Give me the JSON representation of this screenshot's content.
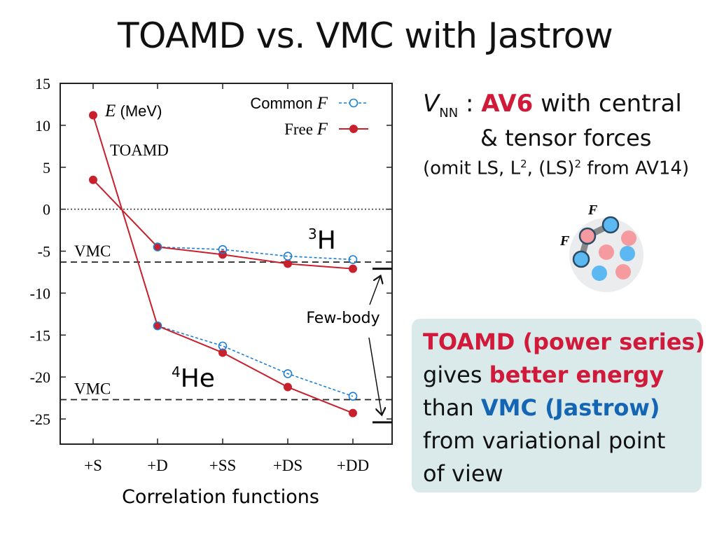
{
  "slide": {
    "title": "TOAMD vs. VMC with Jastrow"
  },
  "right": {
    "vnn_symbol": "V",
    "vnn_sub": "NN",
    "colon": " : ",
    "av6": "AV6",
    "with_central": " with central",
    "tensor": "& tensor forces",
    "omit_prefix": "(omit LS, L",
    "omit_sup1": "2",
    "omit_mid": ", (LS)",
    "omit_sup2": "2",
    "omit_suffix": " from AV14)"
  },
  "molecule": {
    "label_top": "F",
    "label_left": "F",
    "colors": {
      "blue": "#5bb8f0",
      "pink": "#f59a9e",
      "background": "#ebecee",
      "outline": "#2b4a66"
    }
  },
  "callout": {
    "line1": "TOAMD (power series)",
    "line2_prefix": "gives ",
    "line2_highlight": "better energy",
    "line3_prefix": "than ",
    "line3_highlight": "VMC (Jastrow)",
    "line4": "from variational point",
    "line5": "of view",
    "colors": {
      "red": "#d11a3a",
      "blue": "#1565b5",
      "box": "#daeaeb"
    }
  },
  "chart_data": {
    "type": "line",
    "categories": [
      "+S",
      "+D",
      "+SS",
      "+DS",
      "+DD"
    ],
    "xlabel": "Correlation functions",
    "ylabel_italic": "E",
    "ylabel_unit": "(MeV)",
    "inner_label": "TOAMD",
    "ylim": [
      -28,
      15
    ],
    "yticks": [
      15,
      10,
      5,
      0,
      -5,
      -10,
      -15,
      -20,
      -25
    ],
    "legend": {
      "position": "top-right",
      "common_label": "Common ",
      "free_label": "Free ",
      "f_symbol": "F"
    },
    "series": [
      {
        "group": "3H",
        "kind": "Common F",
        "values": [
          3.5,
          -4.5,
          -4.8,
          -5.6,
          -6.0
        ],
        "color": "#1a7fd6",
        "dashed": true
      },
      {
        "group": "3H",
        "kind": "Free F",
        "values": [
          3.5,
          -4.5,
          -5.4,
          -6.5,
          -7.1
        ],
        "color": "#c8202c",
        "dashed": false
      },
      {
        "group": "4He",
        "kind": "Common F",
        "values": [
          11.2,
          -13.9,
          -16.3,
          -19.6,
          -22.3
        ],
        "color": "#1a7fd6",
        "dashed": true
      },
      {
        "group": "4He",
        "kind": "Free F",
        "values": [
          11.2,
          -13.9,
          -17.1,
          -21.2,
          -24.3
        ],
        "color": "#c8202c",
        "dashed": false
      }
    ],
    "reference_lines": [
      {
        "label": "VMC",
        "value": -6.3
      },
      {
        "label": "VMC",
        "value": -22.7
      }
    ],
    "zero_line": 0,
    "nucleus_labels": [
      {
        "mass": "3",
        "symbol": "H"
      },
      {
        "mass": "4",
        "symbol": "He"
      }
    ],
    "few_body": {
      "label": "Few-body",
      "values": [
        -7.1,
        -25.4
      ]
    }
  }
}
